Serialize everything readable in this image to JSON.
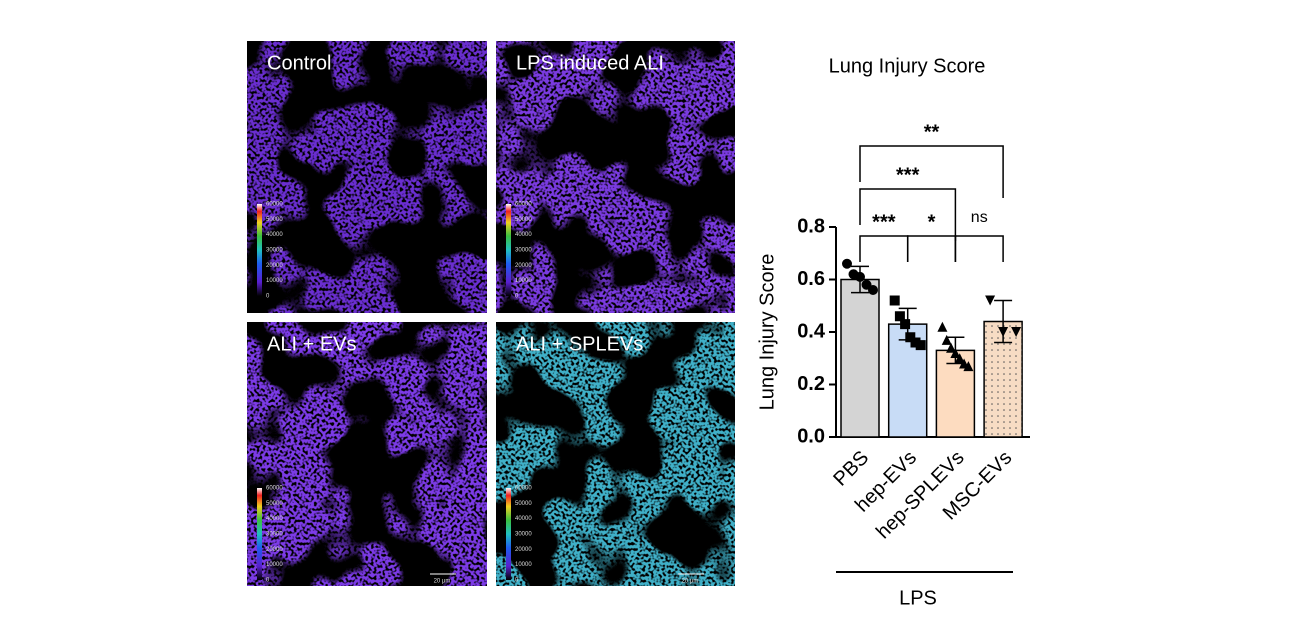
{
  "panels": [
    {
      "label": "Control",
      "tone": "#6a2fd0"
    },
    {
      "label": "LPS induced ALI",
      "tone": "#7a3ae0"
    },
    {
      "label": "ALI + EVs",
      "tone": "#7b3ae6"
    },
    {
      "label": "ALI + SPLEVs",
      "tone": "#3fb0c8"
    }
  ],
  "colorbar_ticks": [
    60000,
    50000,
    40000,
    30000,
    20000,
    10000,
    0
  ],
  "scale_bar_label": "20 μm",
  "chart_data": {
    "type": "bar",
    "title": "Lung Injury Score",
    "y_label": "Lung Injury  Score",
    "categories": [
      "PBS",
      "hep-EVs",
      "hep-SPLEVs",
      "MSC-EVs"
    ],
    "values": [
      0.6,
      0.43,
      0.33,
      0.44
    ],
    "errors": [
      0.05,
      0.06,
      0.05,
      0.08
    ],
    "colors": [
      "#d4d4d4",
      "#c8dcf6",
      "#fddcc0",
      "#f7dcc4"
    ],
    "markers": [
      "circle",
      "square",
      "triangle",
      "triangle-down"
    ],
    "points": [
      [
        0.66,
        0.62,
        0.61,
        0.58,
        0.56
      ],
      [
        0.52,
        0.46,
        0.43,
        0.38,
        0.36,
        0.35
      ],
      [
        0.42,
        0.37,
        0.34,
        0.32,
        0.3,
        0.28,
        0.27
      ],
      [
        0.52,
        0.4,
        0.4
      ]
    ],
    "ylim": [
      0,
      0.8
    ],
    "yticks": [
      {
        "value": 0,
        "label": "0.0"
      },
      {
        "value": 0.2,
        "label": "0.2"
      },
      {
        "value": 0.4,
        "label": "0.4"
      },
      {
        "value": 0.6,
        "label": "0.6"
      },
      {
        "value": 0.8,
        "label": "0.8"
      }
    ],
    "comparisons": [
      {
        "between": [
          "PBS",
          "hep-EVs"
        ],
        "label": "***"
      },
      {
        "between": [
          "hep-EVs",
          "hep-SPLEVs"
        ],
        "label": "*"
      },
      {
        "between": [
          "hep-SPLEVs",
          "MSC-EVs"
        ],
        "label": "ns"
      },
      {
        "between": [
          "PBS",
          "hep-SPLEVs"
        ],
        "label": "***"
      },
      {
        "between": [
          "PBS",
          "MSC-EVs"
        ],
        "label": "**"
      }
    ],
    "group_label": "LPS"
  }
}
